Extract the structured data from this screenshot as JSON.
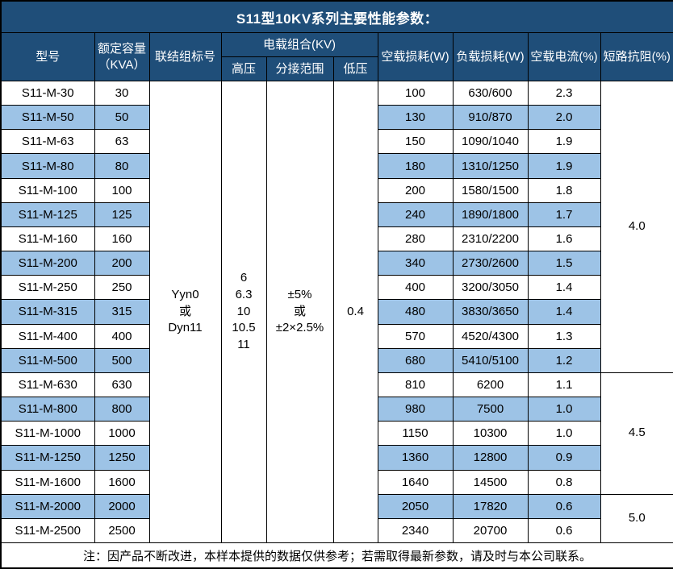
{
  "chart_data": {
    "type": "table",
    "title": "S11型10KV系列主要性能参数：",
    "headers": {
      "model": "型号",
      "capacity": "额定容量\n（KVA）",
      "connection": "联结组标号",
      "voltage_combo": "电载组合(KV)",
      "high_voltage": "高压",
      "tap_range": "分接范围",
      "low_voltage": "低压",
      "no_load_loss": "空载损耗(W)",
      "load_loss": "负载损耗(W)",
      "no_load_current": "空载电流(%)",
      "impedance": "短路抗阻(%)"
    },
    "merged_cells": {
      "connection": "Yyn0\n或\nDyn11",
      "high_voltage": "6\n6.3\n10\n10.5\n11",
      "tap_range": "±5%\n或\n±2×2.5%",
      "low_voltage": "0.4"
    },
    "row_fields": [
      "model",
      "capacity_kva",
      "no_load_loss_w",
      "load_loss_w",
      "no_load_current_pct"
    ],
    "rows": [
      [
        "S11-M-30",
        "30",
        "100",
        "630/600",
        "2.3"
      ],
      [
        "S11-M-50",
        "50",
        "130",
        "910/870",
        "2.0"
      ],
      [
        "S11-M-63",
        "63",
        "150",
        "1090/1040",
        "1.9"
      ],
      [
        "S11-M-80",
        "80",
        "180",
        "1310/1250",
        "1.9"
      ],
      [
        "S11-M-100",
        "100",
        "200",
        "1580/1500",
        "1.8"
      ],
      [
        "S11-M-125",
        "125",
        "240",
        "1890/1800",
        "1.7"
      ],
      [
        "S11-M-160",
        "160",
        "280",
        "2310/2200",
        "1.6"
      ],
      [
        "S11-M-200",
        "200",
        "340",
        "2730/2600",
        "1.5"
      ],
      [
        "S11-M-250",
        "250",
        "400",
        "3200/3050",
        "1.4"
      ],
      [
        "S11-M-315",
        "315",
        "480",
        "3830/3650",
        "1.4"
      ],
      [
        "S11-M-400",
        "400",
        "570",
        "4520/4300",
        "1.3"
      ],
      [
        "S11-M-500",
        "500",
        "680",
        "5410/5100",
        "1.2"
      ],
      [
        "S11-M-630",
        "630",
        "810",
        "6200",
        "1.1"
      ],
      [
        "S11-M-800",
        "800",
        "980",
        "7500",
        "1.0"
      ],
      [
        "S11-M-1000",
        "1000",
        "1150",
        "10300",
        "1.0"
      ],
      [
        "S11-M-1250",
        "1250",
        "1360",
        "12800",
        "0.9"
      ],
      [
        "S11-M-1600",
        "1600",
        "1640",
        "14500",
        "0.8"
      ],
      [
        "S11-M-2000",
        "2000",
        "2050",
        "17820",
        "0.6"
      ],
      [
        "S11-M-2500",
        "2500",
        "2340",
        "20700",
        "0.6"
      ]
    ],
    "impedance_groups": [
      {
        "value": "4.0",
        "row_count": 12
      },
      {
        "value": "4.5",
        "row_count": 5
      },
      {
        "value": "5.0",
        "row_count": 2
      }
    ],
    "note": "注：因产品不断改进，本样本提供的数据仅供参考；若需取得最新参数，请及时与本公司联系。"
  },
  "colors": {
    "header_bg": "#1F4E79",
    "header_text": "#FFFFFF",
    "stripe_bg": "#9DC3E6",
    "row_bg": "#FFFFFF",
    "border": "#000000"
  }
}
